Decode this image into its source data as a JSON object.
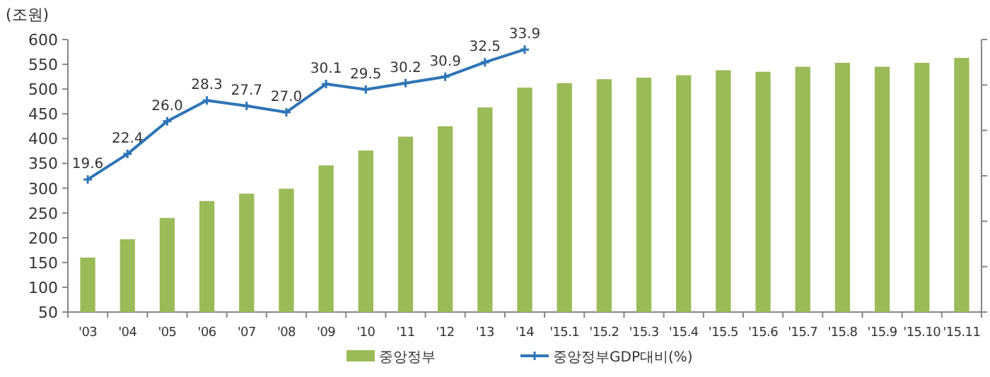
{
  "chart_data": {
    "type": "bar",
    "ylabel": "(조원)",
    "categories": [
      "'03",
      "'04",
      "'05",
      "'06",
      "'07",
      "'08",
      "'09",
      "'10",
      "'11",
      "'12",
      "'13",
      "'14",
      "'15.1",
      "'15.2",
      "'15.3",
      "'15.4",
      "'15.5",
      "'15.6",
      "'15.7",
      "'15.8",
      "'15.9",
      "'15.10",
      "'15.11"
    ],
    "series": [
      {
        "name": "중앙정부",
        "color": "#9bbb59",
        "values": [
          160,
          197,
          240,
          274,
          289,
          299,
          346,
          376,
          404,
          425,
          463,
          503,
          512,
          520,
          523,
          528,
          538,
          535,
          545,
          553,
          545,
          553,
          563
        ]
      },
      {
        "name": "중앙정부GDP대비(%)",
        "type": "line",
        "axis": "y2",
        "color": "#2e75b6",
        "marker": "cross",
        "values": [
          19.6,
          22.4,
          26.0,
          28.3,
          27.7,
          27.0,
          30.1,
          29.5,
          30.2,
          30.9,
          32.5,
          33.9,
          null,
          null,
          null,
          null,
          null,
          null,
          null,
          null,
          null,
          null,
          null
        ],
        "value_labels": [
          "19.6",
          "22.4",
          "26.0",
          "28.3",
          "27.7",
          "27.0",
          "30.1",
          "29.5",
          "30.2",
          "30.9",
          "32.5",
          "33.9",
          null,
          null,
          null,
          null,
          null,
          null,
          null,
          null,
          null,
          null,
          null
        ]
      }
    ],
    "ylim": [
      50,
      600
    ],
    "yticks": [
      50,
      100,
      150,
      200,
      250,
      300,
      350,
      400,
      450,
      500,
      550,
      600
    ],
    "y2lim": [
      5,
      35
    ],
    "y2ticks": [
      {
        "value": 5,
        "label": null
      },
      {
        "value": 10,
        "label": null
      },
      {
        "value": 15,
        "label": null
      },
      {
        "value": 20,
        "label": null
      },
      {
        "value": 25,
        "label": null
      },
      {
        "value": 30,
        "label": null
      },
      {
        "value": 35,
        "label": null
      }
    ],
    "legend": "bottom",
    "grid": false
  }
}
